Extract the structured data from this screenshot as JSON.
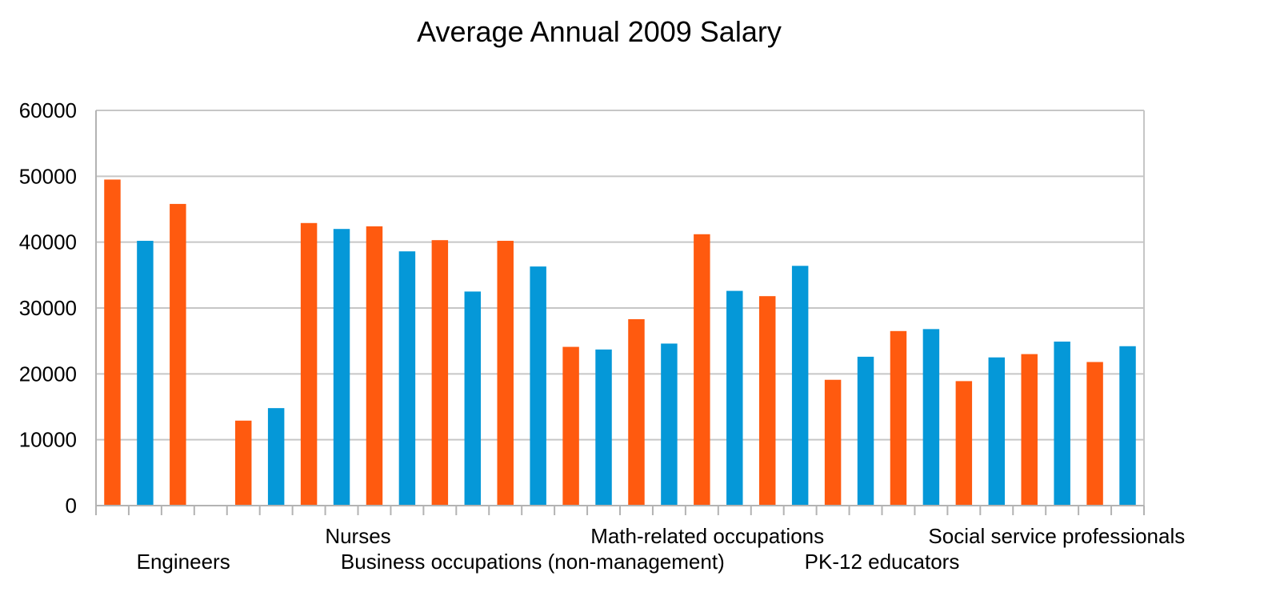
{
  "chart_data": {
    "type": "bar",
    "title": "Average Annual 2009 Salary",
    "xlabel": "",
    "ylabel": "",
    "ylim": [
      0,
      60000
    ],
    "yticks": [
      0,
      10000,
      20000,
      30000,
      40000,
      50000,
      60000
    ],
    "grid": true,
    "legend": "none",
    "colors": {
      "orange": "#ff5a0f",
      "blue": "#0598d8",
      "grid": "#c6c6c6",
      "axis": "#b3b3b3"
    },
    "category_labels": [
      {
        "text": "Engineers",
        "row": 2
      },
      {
        "text": "Nurses",
        "row": 1
      },
      {
        "text": "Business occupations (non-management)",
        "row": 2
      },
      {
        "text": "Math-related occupations",
        "row": 1
      },
      {
        "text": "PK-12 educators",
        "row": 2
      },
      {
        "text": "Social service professionals",
        "row": 1
      }
    ],
    "bars": [
      {
        "value": 49500,
        "color": "orange"
      },
      {
        "value": 40200,
        "color": "blue"
      },
      {
        "value": 45800,
        "color": "orange"
      },
      {
        "value": null,
        "color": "blue"
      },
      {
        "value": 12900,
        "color": "orange"
      },
      {
        "value": 14800,
        "color": "blue"
      },
      {
        "value": 42900,
        "color": "orange"
      },
      {
        "value": 42000,
        "color": "blue"
      },
      {
        "value": 42400,
        "color": "orange"
      },
      {
        "value": 38600,
        "color": "blue"
      },
      {
        "value": 40300,
        "color": "orange"
      },
      {
        "value": 32500,
        "color": "blue"
      },
      {
        "value": 40200,
        "color": "orange"
      },
      {
        "value": 36300,
        "color": "blue"
      },
      {
        "value": 24100,
        "color": "orange"
      },
      {
        "value": 23700,
        "color": "blue"
      },
      {
        "value": 28300,
        "color": "orange"
      },
      {
        "value": 24600,
        "color": "blue"
      },
      {
        "value": 41200,
        "color": "orange"
      },
      {
        "value": 32600,
        "color": "blue"
      },
      {
        "value": 31800,
        "color": "orange"
      },
      {
        "value": 36400,
        "color": "blue"
      },
      {
        "value": 19100,
        "color": "orange"
      },
      {
        "value": 22600,
        "color": "blue"
      },
      {
        "value": 26500,
        "color": "orange"
      },
      {
        "value": 26800,
        "color": "blue"
      },
      {
        "value": 18900,
        "color": "orange"
      },
      {
        "value": 22500,
        "color": "blue"
      },
      {
        "value": 23000,
        "color": "orange"
      },
      {
        "value": 24900,
        "color": "blue"
      },
      {
        "value": 21800,
        "color": "orange"
      },
      {
        "value": 24200,
        "color": "blue"
      }
    ]
  }
}
